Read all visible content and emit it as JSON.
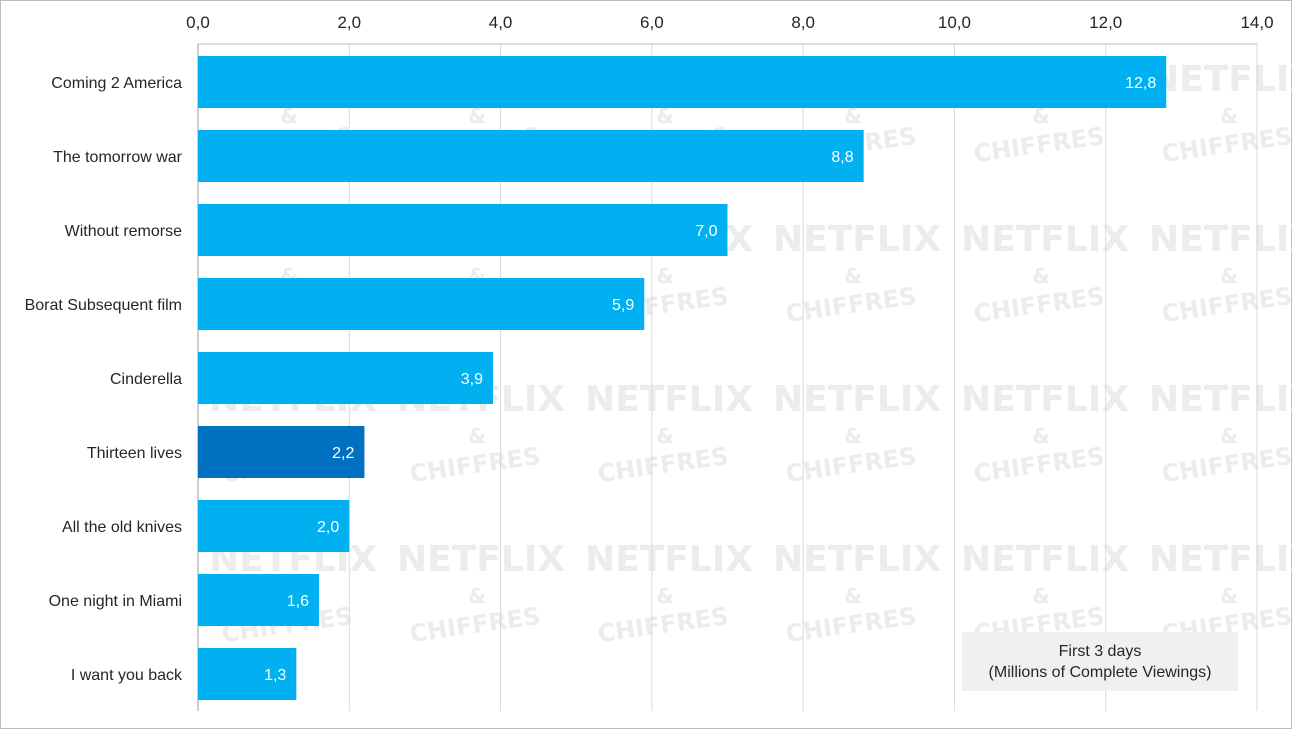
{
  "chart_data": {
    "type": "bar",
    "orientation": "horizontal",
    "categories": [
      "Coming 2 America",
      "The tomorrow war",
      "Without remorse",
      "Borat Subsequent film",
      "Cinderella",
      "Thirteen lives",
      "All the old knives",
      "One night in Miami",
      "I want you back"
    ],
    "values": [
      12.8,
      8.8,
      7.0,
      5.9,
      3.9,
      2.2,
      2.0,
      1.6,
      1.3
    ],
    "data_labels": [
      "12,8",
      "8,8",
      "7,0",
      "5,9",
      "3,9",
      "2,2",
      "2,0",
      "1,6",
      "1,3"
    ],
    "highlight_index": 5,
    "xlim": [
      0,
      14
    ],
    "x_ticks": [
      0,
      2,
      4,
      6,
      8,
      10,
      12,
      14
    ],
    "x_tick_labels": [
      "0,0",
      "2,0",
      "4,0",
      "6,0",
      "8,0",
      "10,0",
      "12,0",
      "14,0"
    ],
    "axis_position": "top",
    "grid": true,
    "colors": {
      "bar": "#00b0f0",
      "highlight": "#0070c0",
      "grid": "#d9d9d9"
    },
    "annotation": {
      "line1": "First 3 days",
      "line2": "(Millions of Complete Viewings)",
      "placement": "bottom-right"
    },
    "watermark": {
      "line1": "NETFLIX",
      "line2": "&",
      "line3": "CHIFFRES"
    }
  }
}
